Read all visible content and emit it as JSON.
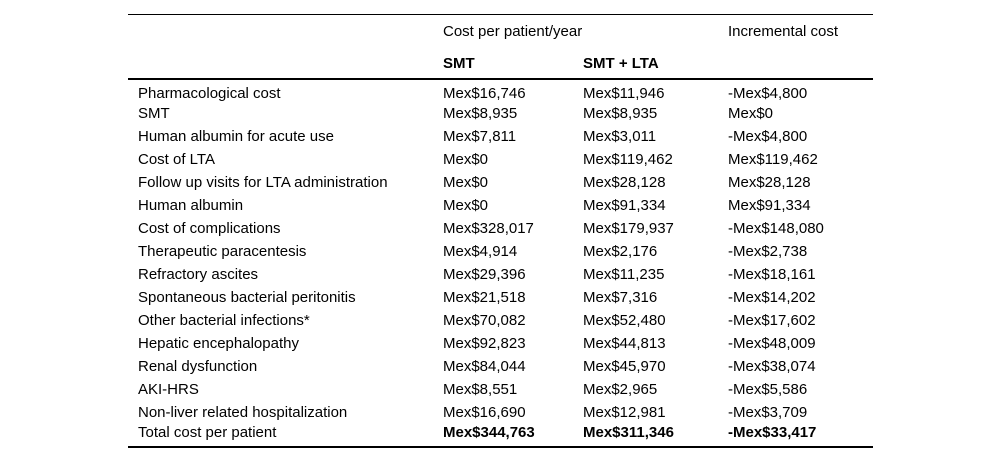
{
  "table": {
    "header": {
      "group_label": "Cost per patient/year",
      "incremental_label": "Incremental cost",
      "col_smt": "SMT",
      "col_smt_lta": "SMT + LTA"
    },
    "rows": [
      {
        "label": "Pharmacological cost",
        "smt": "Mex$16,746",
        "smt_lta": "Mex$11,946",
        "incremental": "-Mex$4,800",
        "bold": false
      },
      {
        "label": "SMT",
        "smt": "Mex$8,935",
        "smt_lta": "Mex$8,935",
        "incremental": "Mex$0",
        "bold": false
      },
      {
        "label": "Human albumin for acute use",
        "smt": "Mex$7,811",
        "smt_lta": "Mex$3,011",
        "incremental": "-Mex$4,800",
        "bold": false
      },
      {
        "label": "Cost of LTA",
        "smt": "Mex$0",
        "smt_lta": "Mex$119,462",
        "incremental": "Mex$119,462",
        "bold": false
      },
      {
        "label": "Follow up visits for LTA administration",
        "smt": "Mex$0",
        "smt_lta": "Mex$28,128",
        "incremental": "Mex$28,128",
        "bold": false
      },
      {
        "label": "Human albumin",
        "smt": "Mex$0",
        "smt_lta": "Mex$91,334",
        "incremental": "Mex$91,334",
        "bold": false
      },
      {
        "label": "Cost of complications",
        "smt": "Mex$328,017",
        "smt_lta": "Mex$179,937",
        "incremental": "-Mex$148,080",
        "bold": false
      },
      {
        "label": "Therapeutic paracentesis",
        "smt": "Mex$4,914",
        "smt_lta": "Mex$2,176",
        "incremental": "-Mex$2,738",
        "bold": false
      },
      {
        "label": "Refractory ascites",
        "smt": "Mex$29,396",
        "smt_lta": "Mex$11,235",
        "incremental": "-Mex$18,161",
        "bold": false
      },
      {
        "label": "Spontaneous bacterial peritonitis",
        "smt": "Mex$21,518",
        "smt_lta": "Mex$7,316",
        "incremental": "-Mex$14,202",
        "bold": false
      },
      {
        "label": "Other bacterial infections*",
        "smt": "Mex$70,082",
        "smt_lta": "Mex$52,480",
        "incremental": "-Mex$17,602",
        "bold": false
      },
      {
        "label": "Hepatic encephalopathy",
        "smt": "Mex$92,823",
        "smt_lta": "Mex$44,813",
        "incremental": "-Mex$48,009",
        "bold": false
      },
      {
        "label": "Renal dysfunction",
        "smt": "Mex$84,044",
        "smt_lta": "Mex$45,970",
        "incremental": "-Mex$38,074",
        "bold": false
      },
      {
        "label": "AKI-HRS",
        "smt": "Mex$8,551",
        "smt_lta": "Mex$2,965",
        "incremental": "-Mex$5,586",
        "bold": false
      },
      {
        "label": "Non-liver related hospitalization",
        "smt": "Mex$16,690",
        "smt_lta": "Mex$12,981",
        "incremental": "-Mex$3,709",
        "bold": false
      },
      {
        "label": "Total cost per patient",
        "smt": "Mex$344,763",
        "smt_lta": "Mex$311,346",
        "incremental": "-Mex$33,417",
        "bold": true
      }
    ],
    "colors": {
      "text": "#000000",
      "background": "#ffffff",
      "rule": "#000000"
    }
  }
}
